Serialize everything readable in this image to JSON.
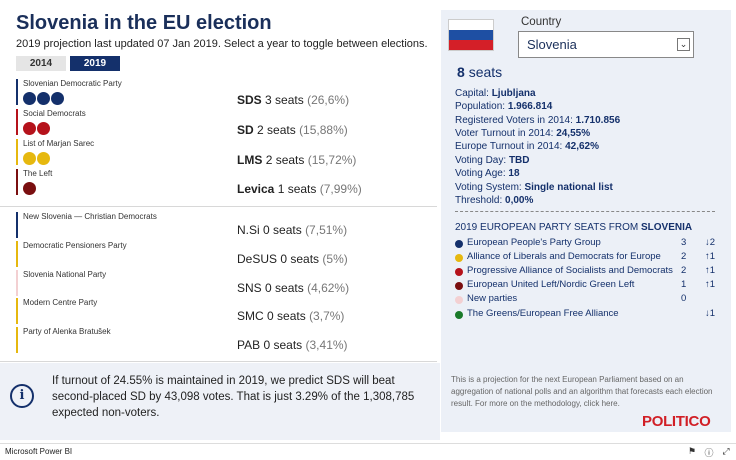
{
  "header": {
    "title": "Slovenia in the EU election",
    "subtitle": "2019 projection last updated 07 Jan 2019. Select a year to toggle between elections.",
    "tabs": [
      "2014",
      "2019"
    ]
  },
  "parties": [
    {
      "name": "Slovenian Democratic Party",
      "abbr": "SDS",
      "seats_text": "3 seats",
      "pct": "(26,6%)",
      "seats": 3,
      "color": "#14306b"
    },
    {
      "name": "Social Democrats",
      "abbr": "SD",
      "seats_text": "2 seats",
      "pct": "(15,88%)",
      "seats": 2,
      "color": "#b5121b"
    },
    {
      "name": "List of Marjan Sarec",
      "abbr": "LMS",
      "seats_text": "2 seats",
      "pct": "(15,72%)",
      "seats": 2,
      "color": "#e6b80f"
    },
    {
      "name": "The Left",
      "abbr": "Levica",
      "seats_text": "1 seats",
      "pct": "(7,99%)",
      "seats": 1,
      "color": "#7a0f10"
    },
    {
      "name": "New Slovenia — Christian Democrats",
      "abbr": "N.Si",
      "seats_text": "0 seats",
      "pct": "(7,51%)",
      "seats": 0,
      "color": "#14306b"
    },
    {
      "name": "Democratic Pensioners Party",
      "abbr": "DeSUS",
      "seats_text": "0 seats",
      "pct": "(5%)",
      "seats": 0,
      "color": "#e6b80f"
    },
    {
      "name": "Slovenia National Party",
      "abbr": "SNS",
      "seats_text": "0 seats",
      "pct": "(4,62%)",
      "seats": 0,
      "color": "#f3d0d2"
    },
    {
      "name": "Modern Centre Party",
      "abbr": "SMC",
      "seats_text": "0 seats",
      "pct": "(3,7%)",
      "seats": 0,
      "color": "#e6b80f"
    },
    {
      "name": "Party of Alenka Bratušek",
      "abbr": "PAB",
      "seats_text": "0 seats",
      "pct": "(3,41%)",
      "seats": 0,
      "color": "#e6b80f"
    }
  ],
  "info": {
    "text": "If turnout of 24.55% is maintained in 2019, we predict SDS will beat second-placed SD by 43,098 votes. That is just 3.29% of the 1,308,785 expected non-voters."
  },
  "country": {
    "label": "Country",
    "selected": "Slovenia",
    "seats_num": "8",
    "seats_word": "seats",
    "facts": [
      {
        "label": "Capital:",
        "value": "Ljubljana"
      },
      {
        "label": "Population:",
        "value": "1.966.814"
      },
      {
        "label": "Registered Voters in 2014:",
        "value": "1.710.856"
      },
      {
        "label": "Voter Turnout in 2014:",
        "value": "24,55%"
      },
      {
        "label": "Europe Turnout in 2014:",
        "value": "42,62%"
      },
      {
        "label": "Voting Day:",
        "value": "TBD"
      },
      {
        "label": "Voting Age:",
        "value": "18"
      },
      {
        "label": "Voting System:",
        "value": "Single national list"
      },
      {
        "label": "Threshold:",
        "value": "0,00%"
      }
    ],
    "flag_colors": [
      "#ffffff",
      "#1e4fa3",
      "#d41f28"
    ]
  },
  "groups": {
    "title_prefix": "2019 EUROPEAN PARTY SEATS FROM",
    "title_country": "SLOVENIA",
    "items": [
      {
        "name": "European People's Party Group",
        "value": "3",
        "change": "↓2",
        "color": "#14306b"
      },
      {
        "name": "Alliance of Liberals and Democrats for Europe",
        "value": "2",
        "change": "↑1",
        "color": "#e6b80f"
      },
      {
        "name": "Progressive Alliance of Socialists and Democrats",
        "value": "2",
        "change": "↑1",
        "color": "#b5121b"
      },
      {
        "name": "European United Left/Nordic Green Left",
        "value": "1",
        "change": "↑1",
        "color": "#7a0f10"
      },
      {
        "name": "New parties",
        "value": "0",
        "change": "",
        "color": "#f3d0d2"
      },
      {
        "name": "The Greens/European Free Alliance",
        "value": "",
        "change": "↓1",
        "color": "#1a7a2a"
      }
    ]
  },
  "footer": {
    "note": "This is a projection for the next European Parliament based on an aggregation of national polls and an algorithm that forecasts each election result. For more on the methodology, click here.",
    "brand": "POLITICO"
  },
  "statusbar": {
    "app": "Microsoft Power BI",
    "icons": [
      "flag-icon",
      "info-icon",
      "expand-icon"
    ]
  }
}
